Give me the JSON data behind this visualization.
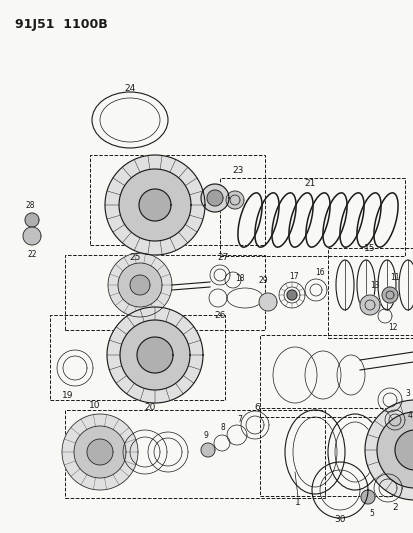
{
  "title": "91J51  1100B",
  "bg_color": "#f5f5f0",
  "line_color": "#1a1a1a",
  "fig_width": 4.14,
  "fig_height": 5.33,
  "dpi": 100
}
